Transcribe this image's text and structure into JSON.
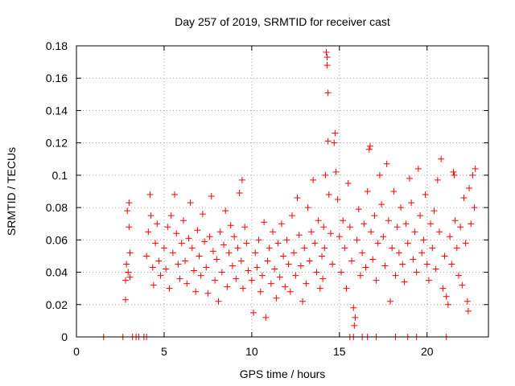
{
  "chart_data": {
    "type": "scatter",
    "title": "Day 257 of 2019, SRMTID for receiver cast",
    "xlabel": "GPS time / hours",
    "ylabel": "SRMTID / TECUs",
    "xlim": [
      0,
      23.5
    ],
    "ylim": [
      0,
      0.18
    ],
    "xticks": [
      0,
      5,
      10,
      15,
      20
    ],
    "xtick_labels": [
      "0",
      "5",
      "10",
      "15",
      "20"
    ],
    "yticks": [
      0,
      0.02,
      0.04,
      0.06,
      0.08,
      0.1,
      0.12,
      0.14,
      0.16,
      0.18
    ],
    "ytick_labels": [
      "0",
      "0.02",
      "0.04",
      "0.06",
      "0.08",
      "0.1",
      "0.12",
      "0.14",
      "0.16",
      "0.18"
    ],
    "grid": true,
    "marker": "+",
    "color": "#ff0000",
    "series": [
      {
        "name": "SRMTID",
        "points": [
          [
            1.55,
            0
          ],
          [
            2.65,
            0
          ],
          [
            3.2,
            0
          ],
          [
            3.4,
            0
          ],
          [
            3.55,
            0
          ],
          [
            3.85,
            0
          ],
          [
            4.0,
            0
          ],
          [
            15.6,
            0
          ],
          [
            15.8,
            0
          ],
          [
            16.3,
            0
          ],
          [
            16.6,
            0
          ],
          [
            17.1,
            0
          ],
          [
            18.2,
            0
          ],
          [
            18.9,
            0
          ],
          [
            19.4,
            0
          ],
          [
            21.1,
            0
          ],
          [
            2.8,
            0.023
          ],
          [
            2.8,
            0.035
          ],
          [
            2.85,
            0.045
          ],
          [
            2.9,
            0.078
          ],
          [
            2.95,
            0.04
          ],
          [
            3.0,
            0.083
          ],
          [
            3.0,
            0.068
          ],
          [
            3.05,
            0.052
          ],
          [
            3.05,
            0.037
          ],
          [
            4.0,
            0.05
          ],
          [
            4.1,
            0.065
          ],
          [
            4.2,
            0.088
          ],
          [
            4.25,
            0.075
          ],
          [
            4.35,
            0.043
          ],
          [
            4.4,
            0.032
          ],
          [
            4.5,
            0.058
          ],
          [
            4.6,
            0.07
          ],
          [
            4.7,
            0.047
          ],
          [
            4.8,
            0.038
          ],
          [
            5.0,
            0.055
          ],
          [
            5.1,
            0.042
          ],
          [
            5.2,
            0.068
          ],
          [
            5.3,
            0.03
          ],
          [
            5.4,
            0.075
          ],
          [
            5.5,
            0.052
          ],
          [
            5.6,
            0.088
          ],
          [
            5.7,
            0.064
          ],
          [
            5.8,
            0.045
          ],
          [
            5.9,
            0.036
          ],
          [
            6.0,
            0.058
          ],
          [
            6.1,
            0.072
          ],
          [
            6.2,
            0.047
          ],
          [
            6.3,
            0.033
          ],
          [
            6.4,
            0.061
          ],
          [
            6.5,
            0.083
          ],
          [
            6.6,
            0.055
          ],
          [
            6.7,
            0.041
          ],
          [
            6.8,
            0.028
          ],
          [
            6.9,
            0.066
          ],
          [
            7.0,
            0.05
          ],
          [
            7.1,
            0.038
          ],
          [
            7.2,
            0.076
          ],
          [
            7.3,
            0.059
          ],
          [
            7.4,
            0.043
          ],
          [
            7.5,
            0.027
          ],
          [
            7.6,
            0.062
          ],
          [
            7.7,
            0.087
          ],
          [
            7.8,
            0.053
          ],
          [
            7.9,
            0.035
          ],
          [
            8.0,
            0.048
          ],
          [
            8.1,
            0.022
          ],
          [
            8.2,
            0.065
          ],
          [
            8.3,
            0.04
          ],
          [
            8.4,
            0.057
          ],
          [
            8.5,
            0.078
          ],
          [
            8.6,
            0.031
          ],
          [
            8.7,
            0.052
          ],
          [
            8.8,
            0.069
          ],
          [
            8.9,
            0.044
          ],
          [
            9.0,
            0.062
          ],
          [
            9.1,
            0.036
          ],
          [
            9.2,
            0.055
          ],
          [
            9.3,
            0.089
          ],
          [
            9.4,
            0.047
          ],
          [
            9.45,
            0.097
          ],
          [
            9.5,
            0.03
          ],
          [
            9.6,
            0.068
          ],
          [
            9.7,
            0.058
          ],
          [
            9.8,
            0.041
          ],
          [
            10.0,
            0.035
          ],
          [
            10.1,
            0.015
          ],
          [
            10.2,
            0.052
          ],
          [
            10.3,
            0.043
          ],
          [
            10.4,
            0.06
          ],
          [
            10.5,
            0.028
          ],
          [
            10.6,
            0.038
          ],
          [
            10.7,
            0.071
          ],
          [
            10.8,
            0.012
          ],
          [
            10.9,
            0.047
          ],
          [
            11.0,
            0.055
          ],
          [
            11.1,
            0.033
          ],
          [
            11.2,
            0.065
          ],
          [
            11.3,
            0.042
          ],
          [
            11.4,
            0.024
          ],
          [
            11.5,
            0.058
          ],
          [
            11.6,
            0.037
          ],
          [
            11.7,
            0.07
          ],
          [
            11.8,
            0.05
          ],
          [
            11.9,
            0.031
          ],
          [
            12.0,
            0.06
          ],
          [
            12.1,
            0.045
          ],
          [
            12.2,
            0.028
          ],
          [
            12.3,
            0.075
          ],
          [
            12.4,
            0.052
          ],
          [
            12.5,
            0.038
          ],
          [
            12.6,
            0.086
          ],
          [
            12.7,
            0.063
          ],
          [
            12.8,
            0.044
          ],
          [
            12.9,
            0.022
          ],
          [
            13.0,
            0.055
          ],
          [
            13.1,
            0.033
          ],
          [
            13.2,
            0.08
          ],
          [
            13.3,
            0.047
          ],
          [
            13.4,
            0.065
          ],
          [
            13.5,
            0.097
          ],
          [
            13.6,
            0.058
          ],
          [
            13.7,
            0.04
          ],
          [
            13.8,
            0.072
          ],
          [
            13.9,
            0.03
          ],
          [
            14.0,
            0.05
          ],
          [
            14.05,
            0.036
          ],
          [
            14.1,
            0.068
          ],
          [
            14.15,
            0.055
          ],
          [
            14.2,
            0.1
          ],
          [
            14.25,
            0.176
          ],
          [
            14.3,
            0.173
          ],
          [
            14.3,
            0.168
          ],
          [
            14.35,
            0.151
          ],
          [
            14.35,
            0.121
          ],
          [
            14.4,
            0.088
          ],
          [
            14.5,
            0.064
          ],
          [
            14.6,
            0.045
          ],
          [
            14.7,
            0.12
          ],
          [
            14.75,
            0.126
          ],
          [
            14.8,
            0.102
          ],
          [
            14.9,
            0.085
          ],
          [
            15.0,
            0.062
          ],
          [
            15.1,
            0.04
          ],
          [
            15.2,
            0.072
          ],
          [
            15.3,
            0.055
          ],
          [
            15.4,
            0.03
          ],
          [
            15.5,
            0.095
          ],
          [
            15.6,
            0.068
          ],
          [
            15.7,
            0.047
          ],
          [
            15.8,
            0.018
          ],
          [
            15.85,
            0.007
          ],
          [
            15.9,
            0.012
          ],
          [
            16.0,
            0.06
          ],
          [
            16.1,
            0.079
          ],
          [
            16.2,
            0.038
          ],
          [
            16.3,
            0.052
          ],
          [
            16.4,
            0.07
          ],
          [
            16.5,
            0.043
          ],
          [
            16.6,
            0.09
          ],
          [
            16.7,
            0.116
          ],
          [
            16.75,
            0.118
          ],
          [
            16.8,
            0.065
          ],
          [
            16.9,
            0.048
          ],
          [
            17.0,
            0.075
          ],
          [
            17.1,
            0.035
          ],
          [
            17.2,
            0.058
          ],
          [
            17.3,
            0.1
          ],
          [
            17.4,
            0.082
          ],
          [
            17.5,
            0.062
          ],
          [
            17.6,
            0.044
          ],
          [
            17.7,
            0.107
          ],
          [
            17.8,
            0.072
          ],
          [
            17.9,
            0.022
          ],
          [
            18.0,
            0.055
          ],
          [
            18.1,
            0.09
          ],
          [
            18.2,
            0.038
          ],
          [
            18.3,
            0.068
          ],
          [
            18.4,
            0.052
          ],
          [
            18.5,
            0.08
          ],
          [
            18.6,
            0.045
          ],
          [
            18.7,
            0.034
          ],
          [
            18.8,
            0.07
          ],
          [
            18.9,
            0.058
          ],
          [
            19.0,
            0.098
          ],
          [
            19.1,
            0.083
          ],
          [
            19.2,
            0.048
          ],
          [
            19.3,
            0.065
          ],
          [
            19.4,
            0.04
          ],
          [
            19.5,
            0.104
          ],
          [
            19.6,
            0.075
          ],
          [
            19.7,
            0.052
          ],
          [
            19.8,
            0.06
          ],
          [
            19.9,
            0.088
          ],
          [
            20.0,
            0.045
          ],
          [
            20.1,
            0.035
          ],
          [
            20.2,
            0.07
          ],
          [
            20.3,
            0.055
          ],
          [
            20.4,
            0.078
          ],
          [
            20.5,
            0.042
          ],
          [
            20.6,
            0.097
          ],
          [
            20.7,
            0.065
          ],
          [
            20.8,
            0.11
          ],
          [
            20.9,
            0.03
          ],
          [
            21.0,
            0.05
          ],
          [
            21.1,
            0.025
          ],
          [
            21.2,
            0.02
          ],
          [
            21.3,
            0.062
          ],
          [
            21.4,
            0.045
          ],
          [
            21.5,
            0.102
          ],
          [
            21.55,
            0.1
          ],
          [
            21.6,
            0.072
          ],
          [
            21.7,
            0.055
          ],
          [
            21.8,
            0.038
          ],
          [
            21.9,
            0.068
          ],
          [
            22.0,
            0.032
          ],
          [
            22.1,
            0.086
          ],
          [
            22.2,
            0.058
          ],
          [
            22.3,
            0.022
          ],
          [
            22.35,
            0.016
          ],
          [
            22.4,
            0.092
          ],
          [
            22.5,
            0.07
          ],
          [
            22.6,
            0.1
          ],
          [
            22.7,
            0.08
          ],
          [
            22.75,
            0.104
          ]
        ]
      }
    ]
  }
}
